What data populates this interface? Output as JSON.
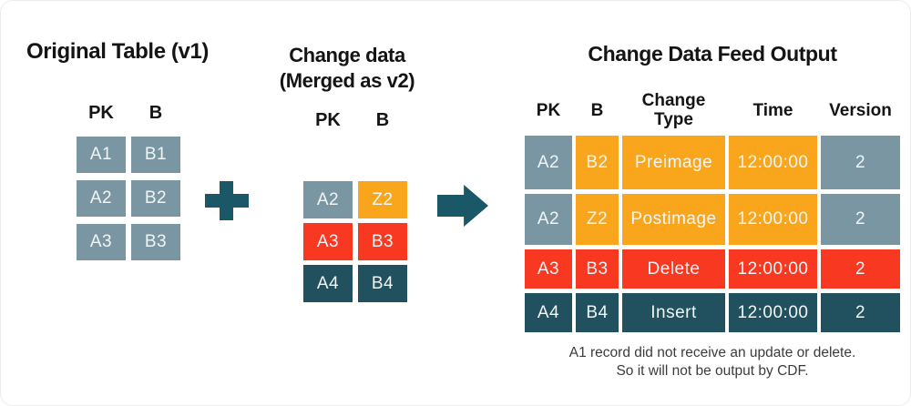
{
  "colors": {
    "slate": "#7A96A2",
    "orange": "#FAA61D",
    "red": "#F93822",
    "teal": "#21505E",
    "shape": "#1A5767",
    "cell_text": "#F0F6F6",
    "heading_text": "#141414",
    "note_text": "#3C3C3C"
  },
  "left_panel": {
    "title": "Original Table (v1)",
    "columns": [
      "PK",
      "B"
    ],
    "rows": [
      [
        {
          "text": "A1",
          "color": "slate"
        },
        {
          "text": "B1",
          "color": "slate"
        }
      ],
      [
        {
          "text": "A2",
          "color": "slate"
        },
        {
          "text": "B2",
          "color": "slate"
        }
      ],
      [
        {
          "text": "A3",
          "color": "slate"
        },
        {
          "text": "B3",
          "color": "slate"
        }
      ]
    ]
  },
  "middle_panel": {
    "title_line1": "Change data",
    "title_line2": "(Merged as v2)",
    "columns": [
      "PK",
      "B"
    ],
    "rows": [
      [
        {
          "text": "A2",
          "color": "slate"
        },
        {
          "text": "Z2",
          "color": "orange"
        }
      ],
      [
        {
          "text": "A3",
          "color": "red"
        },
        {
          "text": "B3",
          "color": "red"
        }
      ],
      [
        {
          "text": "A4",
          "color": "teal"
        },
        {
          "text": "B4",
          "color": "teal"
        }
      ]
    ]
  },
  "output_panel": {
    "title": "Change Data Feed Output",
    "columns": [
      "PK",
      "B",
      "Change Type",
      "Time",
      "Version"
    ],
    "rows": [
      [
        {
          "text": "A2",
          "color": "slate"
        },
        {
          "text": "B2",
          "color": "orange"
        },
        {
          "text": "Preimage",
          "color": "orange"
        },
        {
          "text": "12:00:00",
          "color": "orange"
        },
        {
          "text": "2",
          "color": "slate"
        }
      ],
      [
        {
          "text": "A2",
          "color": "slate"
        },
        {
          "text": "Z2",
          "color": "orange"
        },
        {
          "text": "Postimage",
          "color": "orange"
        },
        {
          "text": "12:00:00",
          "color": "orange"
        },
        {
          "text": "2",
          "color": "slate"
        }
      ],
      [
        {
          "text": "A3",
          "color": "red"
        },
        {
          "text": "B3",
          "color": "red"
        },
        {
          "text": "Delete",
          "color": "red"
        },
        {
          "text": "12:00:00",
          "color": "red"
        },
        {
          "text": "2",
          "color": "red"
        }
      ],
      [
        {
          "text": "A4",
          "color": "teal"
        },
        {
          "text": "B4",
          "color": "teal"
        },
        {
          "text": "Insert",
          "color": "teal"
        },
        {
          "text": "12:00:00",
          "color": "teal"
        },
        {
          "text": "2",
          "color": "teal"
        }
      ]
    ],
    "note_line1": "A1 record did not receive an update or delete.",
    "note_line2": "So it will not be output by CDF."
  }
}
